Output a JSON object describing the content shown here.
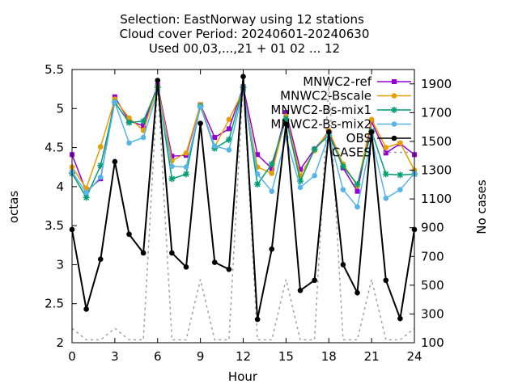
{
  "chart_data": {
    "type": "line",
    "title_lines": [
      "Selection: EastNorway using    12 stations",
      "Cloud cover   Period: 20240601-20240630",
      "Used 00,03,...,21 + 01 02 ... 12"
    ],
    "xlabel": "Hour",
    "ylabel": "octas",
    "y2label": "No cases",
    "xlim": [
      0,
      24
    ],
    "ylim": [
      2,
      5.5
    ],
    "y2lim": [
      100,
      2000
    ],
    "xticks": [
      "0",
      "3",
      "6",
      "9",
      "12",
      "15",
      "18",
      "21",
      "24"
    ],
    "yticks": [
      "2",
      "2.5",
      "3",
      "3.5",
      "4",
      "4.5",
      "5",
      "5.5"
    ],
    "y2ticks": [
      "100",
      "300",
      "500",
      "700",
      "900",
      "1100",
      "1300",
      "1500",
      "1700",
      "1900"
    ],
    "legend_position": "top-right",
    "x": [
      0,
      1,
      2,
      3,
      4,
      5,
      6,
      7,
      8,
      9,
      10,
      11,
      12,
      13,
      14,
      15,
      16,
      17,
      18,
      19,
      20,
      21,
      22,
      23,
      24
    ],
    "series": [
      {
        "name": "MNWC2-ref",
        "color": "#9400d3",
        "marker": "square",
        "values": [
          4.41,
          3.94,
          4.1,
          5.15,
          4.84,
          4.78,
          5.3,
          4.39,
          4.4,
          5.05,
          4.63,
          4.74,
          5.28,
          4.41,
          4.23,
          4.95,
          4.22,
          4.48,
          4.7,
          4.24,
          3.94,
          4.83,
          4.43,
          4.55,
          4.41
        ]
      },
      {
        "name": "MNWC2-Bscale",
        "color": "#e69f00",
        "marker": "circle",
        "values": [
          4.25,
          3.98,
          4.51,
          5.12,
          4.88,
          4.72,
          5.28,
          4.33,
          4.43,
          5.05,
          4.51,
          4.86,
          5.23,
          4.25,
          4.17,
          4.9,
          4.14,
          4.46,
          4.72,
          4.29,
          4.01,
          4.86,
          4.5,
          4.56,
          4.21
        ]
      },
      {
        "name": "MNWC2-Bs-mix1",
        "color": "#009e73",
        "marker": "star",
        "values": [
          4.17,
          3.86,
          4.27,
          5.08,
          4.82,
          4.84,
          5.27,
          4.1,
          4.16,
          5.03,
          4.49,
          4.6,
          5.27,
          4.03,
          4.29,
          4.87,
          4.07,
          4.48,
          4.66,
          4.26,
          4.03,
          4.71,
          4.16,
          4.15,
          4.16
        ]
      },
      {
        "name": "MNWC2-Bs-mix2",
        "color": "#56b4e9",
        "marker": "circle",
        "values": [
          4.19,
          3.92,
          4.12,
          5.08,
          4.56,
          4.63,
          5.22,
          4.26,
          4.25,
          5.02,
          4.52,
          4.47,
          5.22,
          4.16,
          3.94,
          4.63,
          3.99,
          4.14,
          4.66,
          3.96,
          3.74,
          4.62,
          3.85,
          3.96,
          4.17
        ]
      },
      {
        "name": "OBS",
        "color": "#000000",
        "marker": "circle",
        "values": [
          3.45,
          2.43,
          3.07,
          4.32,
          3.39,
          3.15,
          5.36,
          3.15,
          2.97,
          4.81,
          3.03,
          2.94,
          5.41,
          2.3,
          3.2,
          4.8,
          2.67,
          2.8,
          4.7,
          3.0,
          2.64,
          4.7,
          2.8,
          2.31,
          3.45
        ]
      },
      {
        "name": "CASES",
        "color": "#a0a0a0",
        "marker": "none",
        "axis": "y2",
        "dashed": true,
        "values": [
          200,
          120,
          120,
          200,
          120,
          120,
          1910,
          120,
          120,
          540,
          120,
          120,
          1910,
          120,
          120,
          540,
          120,
          120,
          1910,
          120,
          120,
          540,
          120,
          120,
          200
        ]
      }
    ]
  }
}
